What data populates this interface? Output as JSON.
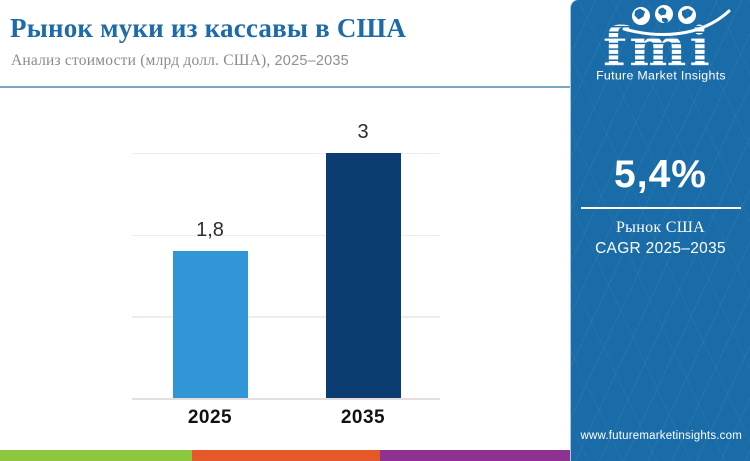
{
  "header": {
    "title": "Рынок муки из кассавы в США",
    "subtitle_text": "Анализ стоимости (млрд долл. США),",
    "subtitle_range": "2025–2035"
  },
  "logo": {
    "brand": "fmi",
    "tagline": "Future Market Insights",
    "icons": [
      "globe-americas-icon",
      "globe-europe-icon",
      "globe-asia-icon"
    ]
  },
  "sidebar": {
    "background": "#1a6ca8",
    "stat_value": "5,4%",
    "market_label": "Рынок США",
    "cagr_label": "CAGR 2025–2035",
    "website": "www.futuremarketinsights.com"
  },
  "chart_data": {
    "type": "bar",
    "title": "Рынок муки из кассавы в США",
    "subtitle": "Анализ стоимости (млрд долл. США), 2025–2035",
    "categories": [
      "2025",
      "2035"
    ],
    "values": [
      1.8,
      3
    ],
    "value_labels": [
      "1,8",
      "3"
    ],
    "bar_colors": [
      "#3295d6",
      "#0b3c72"
    ],
    "ylim": [
      0,
      3
    ],
    "gridline_values": [
      0,
      1,
      2,
      3
    ],
    "grid": true,
    "legend": false,
    "xlabel": "",
    "ylabel": ""
  },
  "footer": {
    "stripe_colors": [
      "#8dc63f",
      "#e4582a",
      "#8e3190"
    ]
  },
  "theme": {
    "title_color": "#1d6ba9",
    "subtitle_color": "#8b8b8b",
    "divider_color": "#7aa5c2"
  }
}
